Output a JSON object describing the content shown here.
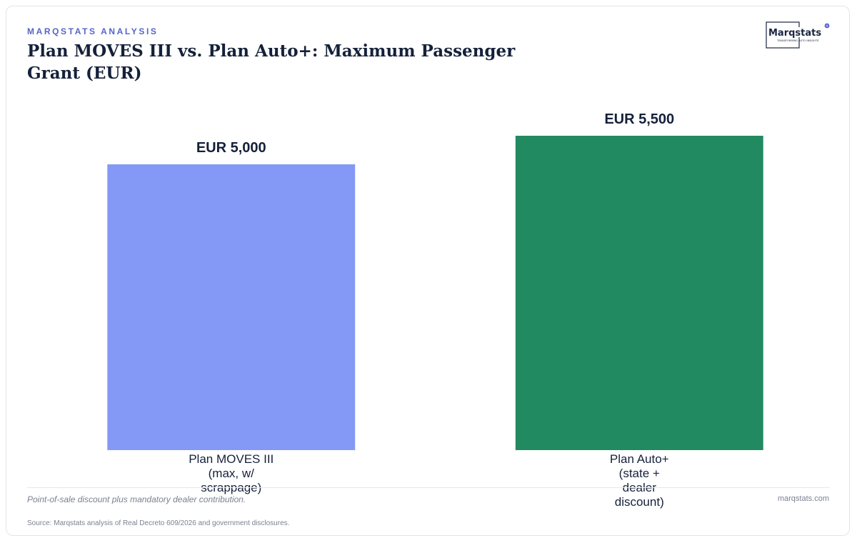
{
  "header": {
    "eyebrow": "MARQSTATS ANALYSIS",
    "title": "Plan MOVES III vs. Plan Auto+: Maximum Passenger Grant (EUR)"
  },
  "logo": {
    "name": "Marqstats",
    "tagline": "TRANSFORMING AUTO INSIGHTS"
  },
  "chart_data": {
    "type": "bar",
    "title": "Plan MOVES III vs. Plan Auto+: Maximum Passenger Grant (EUR)",
    "categories": [
      "Plan MOVES III (max, w/ scrappage)",
      "Plan Auto+ (state + dealer discount)"
    ],
    "category_lines": [
      [
        "Plan MOVES III",
        "(max, w/",
        "scrappage)"
      ],
      [
        "Plan Auto+",
        "(state +",
        "dealer",
        "discount)"
      ]
    ],
    "values": [
      5000,
      5500
    ],
    "value_labels": [
      "EUR 5,000",
      "EUR 5,500"
    ],
    "colors": [
      "#8499f5",
      "#218a61"
    ],
    "xlabel": "",
    "ylabel": "",
    "ylim": [
      0,
      6000
    ],
    "grid": false,
    "legend": "none"
  },
  "footer": {
    "note": "Point-of-sale discount plus mandatory dealer contribution.",
    "site": "marqstats.com",
    "source": "Source: Marqstats analysis of Real Decreto 609/2026 and government disclosures."
  }
}
